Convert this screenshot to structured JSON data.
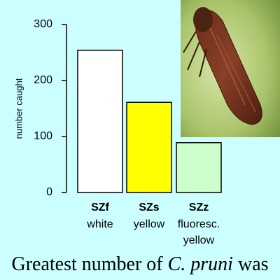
{
  "chart_data": {
    "type": "bar",
    "y_label": "number caught",
    "categories": [
      "SZf",
      "SZs",
      "SZz"
    ],
    "sublabels": [
      [
        "white"
      ],
      [
        "yellow"
      ],
      [
        "fluoresc.",
        "yellow"
      ]
    ],
    "values": [
      254,
      161,
      89
    ],
    "colors": [
      "#ffffff",
      "#ffff00",
      "#ccffcc"
    ],
    "ylim": [
      0,
      300
    ],
    "yticks": [
      0,
      100,
      200,
      300
    ]
  },
  "caption": [
    "Greatest number of ",
    "C. pruni",
    " was"
  ]
}
